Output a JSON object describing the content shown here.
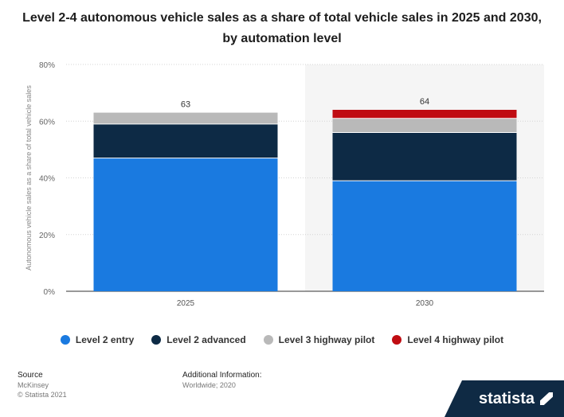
{
  "title_line1": "Level 2-4 autonomous vehicle sales as a share of total vehicle sales in 2025 and 2030,",
  "title_line2": "by automation level",
  "chart_data": {
    "type": "bar",
    "stacked": true,
    "categories": [
      "2025",
      "2030"
    ],
    "series": [
      {
        "name": "Level 2 entry",
        "color": "#1a7ae0",
        "values": [
          47,
          39
        ]
      },
      {
        "name": "Level 2 advanced",
        "color": "#0d2a45",
        "values": [
          12,
          17
        ]
      },
      {
        "name": "Level 3 highway pilot",
        "color": "#b9b9b9",
        "values": [
          4,
          5
        ]
      },
      {
        "name": "Level 4 highway pilot",
        "color": "#c00c12",
        "values": [
          0,
          3
        ]
      }
    ],
    "totals": [
      "63",
      "64"
    ],
    "ylabel": "Autonomous vehicle sales as a share of total vehicle sales",
    "ylim": [
      0,
      80
    ],
    "yticks": [
      0,
      20,
      40,
      60,
      80
    ],
    "ytick_labels": [
      "0%",
      "20%",
      "40%",
      "60%",
      "80%"
    ],
    "grid": true,
    "legend": "bottom"
  },
  "legend": [
    {
      "label": "Level 2 entry",
      "color": "#1a7ae0"
    },
    {
      "label": "Level 2 advanced",
      "color": "#0d2a45"
    },
    {
      "label": "Level 3 highway pilot",
      "color": "#b9b9b9"
    },
    {
      "label": "Level 4 highway pilot",
      "color": "#c00c12"
    }
  ],
  "footer": {
    "source_heading": "Source",
    "source_name": "McKinsey",
    "copyright": "© Statista 2021",
    "info_heading": "Additional Information:",
    "info_text": "Worldwide; 2020"
  },
  "brand": "statista"
}
